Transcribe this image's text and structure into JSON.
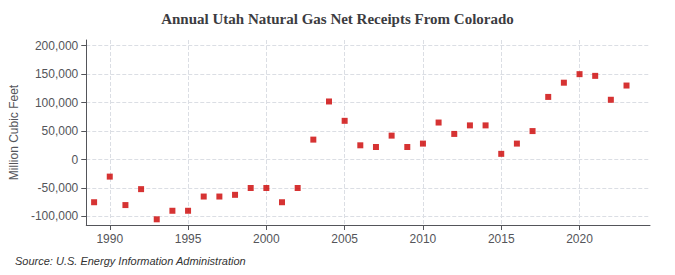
{
  "chart_data": {
    "type": "scatter",
    "title": "Annual Utah Natural Gas Net Receipts From Colorado",
    "ylabel": "Million Cubic Feet",
    "annotation": "Source: U.S. Energy Information Administration",
    "x": [
      1989,
      1990,
      1991,
      1992,
      1993,
      1994,
      1995,
      1996,
      1997,
      1998,
      1999,
      2000,
      2001,
      2002,
      2003,
      2004,
      2005,
      2006,
      2007,
      2008,
      2009,
      2010,
      2011,
      2012,
      2013,
      2014,
      2015,
      2016,
      2017,
      2018,
      2019,
      2020,
      2021,
      2022,
      2023
    ],
    "values": [
      -75000,
      -30000,
      -80000,
      -52000,
      -105000,
      -90000,
      -90000,
      -65000,
      -65000,
      -62000,
      -50000,
      -50000,
      -75000,
      -50000,
      35000,
      102000,
      68000,
      25000,
      22000,
      42000,
      22000,
      28000,
      65000,
      45000,
      60000,
      60000,
      10000,
      28000,
      50000,
      110000,
      135000,
      150000,
      147000,
      105000,
      130000
    ],
    "color": "#cc0000",
    "marker": "square",
    "xlim": [
      1988.5,
      2024.5
    ],
    "xticks": [
      1990,
      1995,
      2000,
      2005,
      2010,
      2015,
      2020
    ],
    "ylim": [
      -115000,
      210000
    ],
    "yticks": [
      {
        "value": -100000,
        "label": "-100,000"
      },
      {
        "value": -50000,
        "label": "-50,000"
      },
      0,
      {
        "value": 50000,
        "label": "50,000"
      },
      {
        "value": 100000,
        "label": "100,000"
      },
      {
        "value": 150000,
        "label": "150,000"
      },
      {
        "value": 200000,
        "label": "200,000"
      }
    ],
    "grid": true
  }
}
